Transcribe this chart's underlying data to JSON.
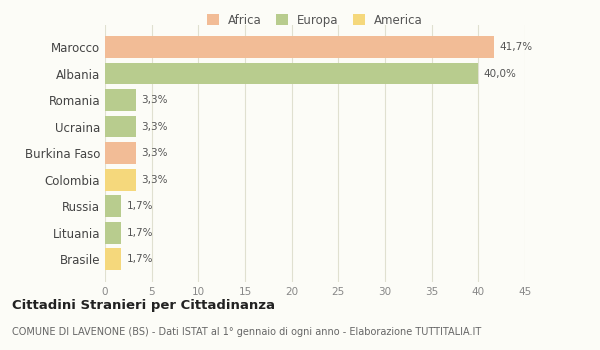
{
  "countries": [
    "Marocco",
    "Albania",
    "Romania",
    "Ucraina",
    "Burkina Faso",
    "Colombia",
    "Russia",
    "Lituania",
    "Brasile"
  ],
  "values": [
    41.7,
    40.0,
    3.3,
    3.3,
    3.3,
    3.3,
    1.7,
    1.7,
    1.7
  ],
  "labels": [
    "41,7%",
    "40,0%",
    "3,3%",
    "3,3%",
    "3,3%",
    "3,3%",
    "1,7%",
    "1,7%",
    "1,7%"
  ],
  "colors": [
    "#f2bc96",
    "#b8cc8e",
    "#b8cc8e",
    "#b8cc8e",
    "#f2bc96",
    "#f5d87c",
    "#b8cc8e",
    "#b8cc8e",
    "#f5d87c"
  ],
  "legend": [
    {
      "label": "Africa",
      "color": "#f2bc96"
    },
    {
      "label": "Europa",
      "color": "#b8cc8e"
    },
    {
      "label": "America",
      "color": "#f5d87c"
    }
  ],
  "xlim": [
    0,
    45
  ],
  "xticks": [
    0,
    5,
    10,
    15,
    20,
    25,
    30,
    35,
    40,
    45
  ],
  "title": "Cittadini Stranieri per Cittadinanza",
  "subtitle": "COMUNE DI LAVENONE (BS) - Dati ISTAT al 1° gennaio di ogni anno - Elaborazione TUTTITALIA.IT",
  "background_color": "#fcfcf7",
  "grid_color": "#e0e0d0"
}
